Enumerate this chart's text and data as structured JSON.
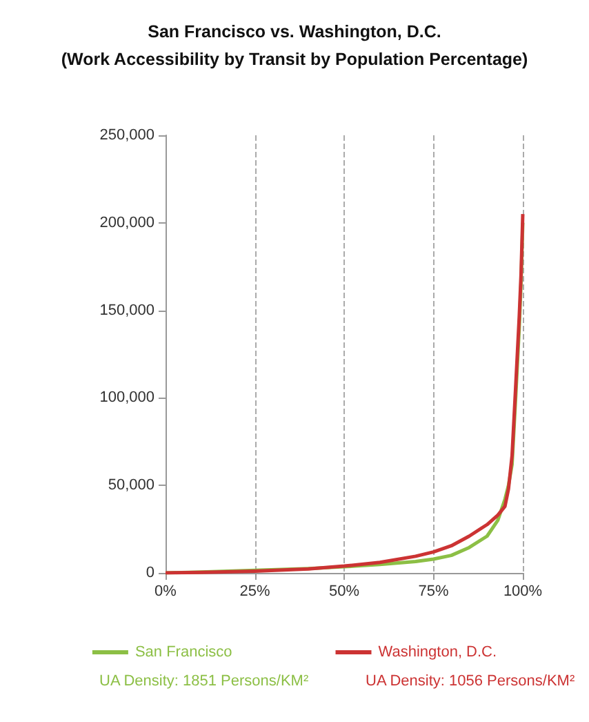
{
  "chart_data": {
    "type": "line",
    "title": "San Francisco vs. Washington, D.C.\n(Work Accessibility by Transit by Population Percentage)",
    "x": [
      0,
      10,
      25,
      40,
      50,
      60,
      70,
      75,
      80,
      85,
      90,
      93,
      95,
      96,
      97,
      98,
      99,
      99.5,
      100
    ],
    "series": [
      {
        "name": "San Francisco",
        "color": "#8cbf45",
        "values": [
          0,
          500,
          1500,
          2500,
          3500,
          4800,
          6500,
          7900,
          10000,
          14500,
          21000,
          30000,
          42000,
          50000,
          62000,
          100000,
          140000,
          165000,
          200000
        ]
      },
      {
        "name": "Washington, D.C.",
        "color": "#cc3333",
        "values": [
          0,
          300,
          1000,
          2300,
          3900,
          6000,
          9500,
          12000,
          15500,
          21000,
          27600,
          33000,
          38000,
          48000,
          67000,
          106000,
          146000,
          170000,
          205000
        ]
      }
    ],
    "annotations": [
      "UA Density: 1851 Persons/KM²",
      "UA Density: 1056 Persons/KM²"
    ],
    "xlim": [
      0,
      100
    ],
    "xticks": [
      {
        "value": 0,
        "label": "0%"
      },
      {
        "value": 25,
        "label": "25%"
      },
      {
        "value": 50,
        "label": "50%"
      },
      {
        "value": 75,
        "label": "75%"
      },
      {
        "value": 100,
        "label": "100%"
      }
    ],
    "ylim": [
      0,
      250000
    ],
    "yticks": [
      0,
      {
        "value": 50000,
        "label": "50,000"
      },
      {
        "value": 100000,
        "label": "100,000"
      },
      {
        "value": 150000,
        "label": "150,000"
      },
      {
        "value": 200000,
        "label": "200,000"
      },
      {
        "value": 250000,
        "label": "250,000"
      }
    ],
    "grid": "x",
    "legend": "bottom",
    "marker": "none",
    "line_style": "solid"
  }
}
